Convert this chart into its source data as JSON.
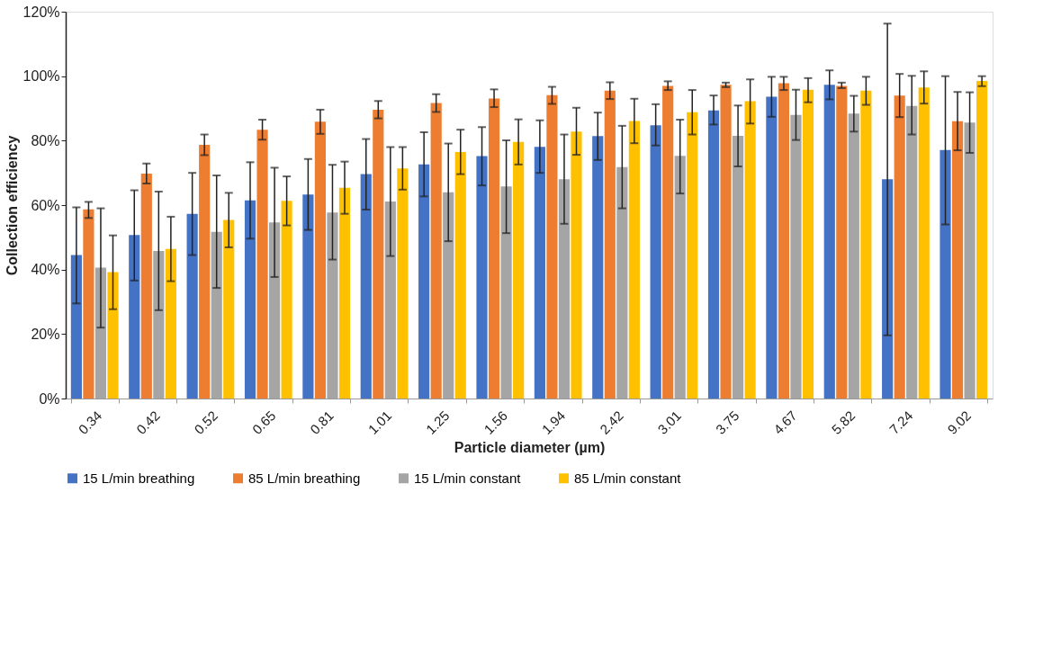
{
  "chart_data": {
    "type": "bar",
    "xlabel": "Particle diameter (µm)",
    "ylabel": "Collection efficiency",
    "categories": [
      "0.34",
      "0.42",
      "0.52",
      "0.65",
      "0.81",
      "1.01",
      "1.25",
      "1.56",
      "1.94",
      "2.42",
      "3.01",
      "3.75",
      "4.67",
      "5.82",
      "7.24",
      "9.02"
    ],
    "ylim": [
      0,
      120
    ],
    "yticks": [
      {
        "value": 0,
        "label": "0%"
      },
      {
        "value": 20,
        "label": "20%"
      },
      {
        "value": 40,
        "label": "40%"
      },
      {
        "value": 60,
        "label": "60%"
      },
      {
        "value": 80,
        "label": "80%"
      },
      {
        "value": 100,
        "label": "100%"
      },
      {
        "value": 120,
        "label": "120%"
      }
    ],
    "grid": false,
    "legend": "bottom",
    "series": [
      {
        "name": "15 L/min breathing",
        "color": "#4472c4",
        "values": [
          44.5,
          50.7,
          57.3,
          61.5,
          63.3,
          69.6,
          72.6,
          75.2,
          78.1,
          81.4,
          84.8,
          89.4,
          93.6,
          97.3,
          68,
          77.1
        ],
        "errors": [
          [
            29.5,
            59.3
          ],
          [
            36.6,
            64.6
          ],
          [
            44.5,
            70
          ],
          [
            49.6,
            73.3
          ],
          [
            52.3,
            74.3
          ],
          [
            58.6,
            80.5
          ],
          [
            62.7,
            82.6
          ],
          [
            66.1,
            84.2
          ],
          [
            70,
            86.3
          ],
          [
            74,
            88.7
          ],
          [
            78.5,
            91.3
          ],
          [
            85,
            94
          ],
          [
            87.4,
            99.8
          ],
          [
            92.8,
            101.8
          ],
          [
            19.6,
            116.3
          ],
          [
            54,
            100
          ]
        ]
      },
      {
        "name": "85 L/min breathing",
        "color": "#ed7d31",
        "values": [
          58.7,
          69.8,
          78.7,
          83.4,
          85.9,
          89.6,
          91.7,
          93.1,
          94.1,
          95.5,
          97,
          97.3,
          97.8,
          97,
          94,
          86
        ],
        "errors": [
          [
            56,
            61
          ],
          [
            66.7,
            72.9
          ],
          [
            75.5,
            81.9
          ],
          [
            80.3,
            86.5
          ],
          [
            82.1,
            89.6
          ],
          [
            86.9,
            92.3
          ],
          [
            88.9,
            94.4
          ],
          [
            90.4,
            95.9
          ],
          [
            91.4,
            96.7
          ],
          [
            92.9,
            98.1
          ],
          [
            95.7,
            98.4
          ],
          [
            96.6,
            98
          ],
          [
            95.7,
            99.8
          ],
          [
            96.3,
            98
          ],
          [
            87.3,
            100.7
          ],
          [
            77,
            95.1
          ]
        ]
      },
      {
        "name": "15 L/min constant",
        "color": "#a5a5a5",
        "values": [
          40.6,
          45.8,
          51.7,
          54.6,
          57.7,
          61.1,
          64,
          65.8,
          68,
          71.8,
          75.3,
          81.5,
          88,
          88.4,
          90.8,
          85.6
        ],
        "errors": [
          [
            22,
            59
          ],
          [
            27.4,
            64.2
          ],
          [
            34.3,
            69.2
          ],
          [
            37.7,
            71.6
          ],
          [
            43.1,
            72.5
          ],
          [
            44.2,
            78
          ],
          [
            48.8,
            79.1
          ],
          [
            51.3,
            80.1
          ],
          [
            54.2,
            81.9
          ],
          [
            59,
            84.6
          ],
          [
            63.6,
            86.5
          ],
          [
            72,
            90.9
          ],
          [
            80.2,
            95.8
          ],
          [
            82.8,
            93.9
          ],
          [
            81.9,
            100.1
          ],
          [
            76.2,
            95
          ]
        ]
      },
      {
        "name": "85 L/min constant",
        "color": "#ffc000",
        "values": [
          39.2,
          46.4,
          55.4,
          61.3,
          65.4,
          71.4,
          76.5,
          79.6,
          82.8,
          86.1,
          88.8,
          92.2,
          95.8,
          95.5,
          96.5,
          98.5
        ],
        "errors": [
          [
            27.7,
            50.6
          ],
          [
            36.4,
            56.4
          ],
          [
            46.9,
            63.8
          ],
          [
            53.7,
            68.9
          ],
          [
            57.3,
            73.5
          ],
          [
            64.8,
            78
          ],
          [
            69.6,
            83.4
          ],
          [
            72.6,
            86.6
          ],
          [
            75.6,
            90.2
          ],
          [
            79.2,
            93
          ],
          [
            81.9,
            95.7
          ],
          [
            85.3,
            99
          ],
          [
            91.9,
            99.4
          ],
          [
            91.1,
            99.8
          ],
          [
            91.5,
            101.5
          ],
          [
            96.9,
            100
          ]
        ]
      }
    ]
  }
}
